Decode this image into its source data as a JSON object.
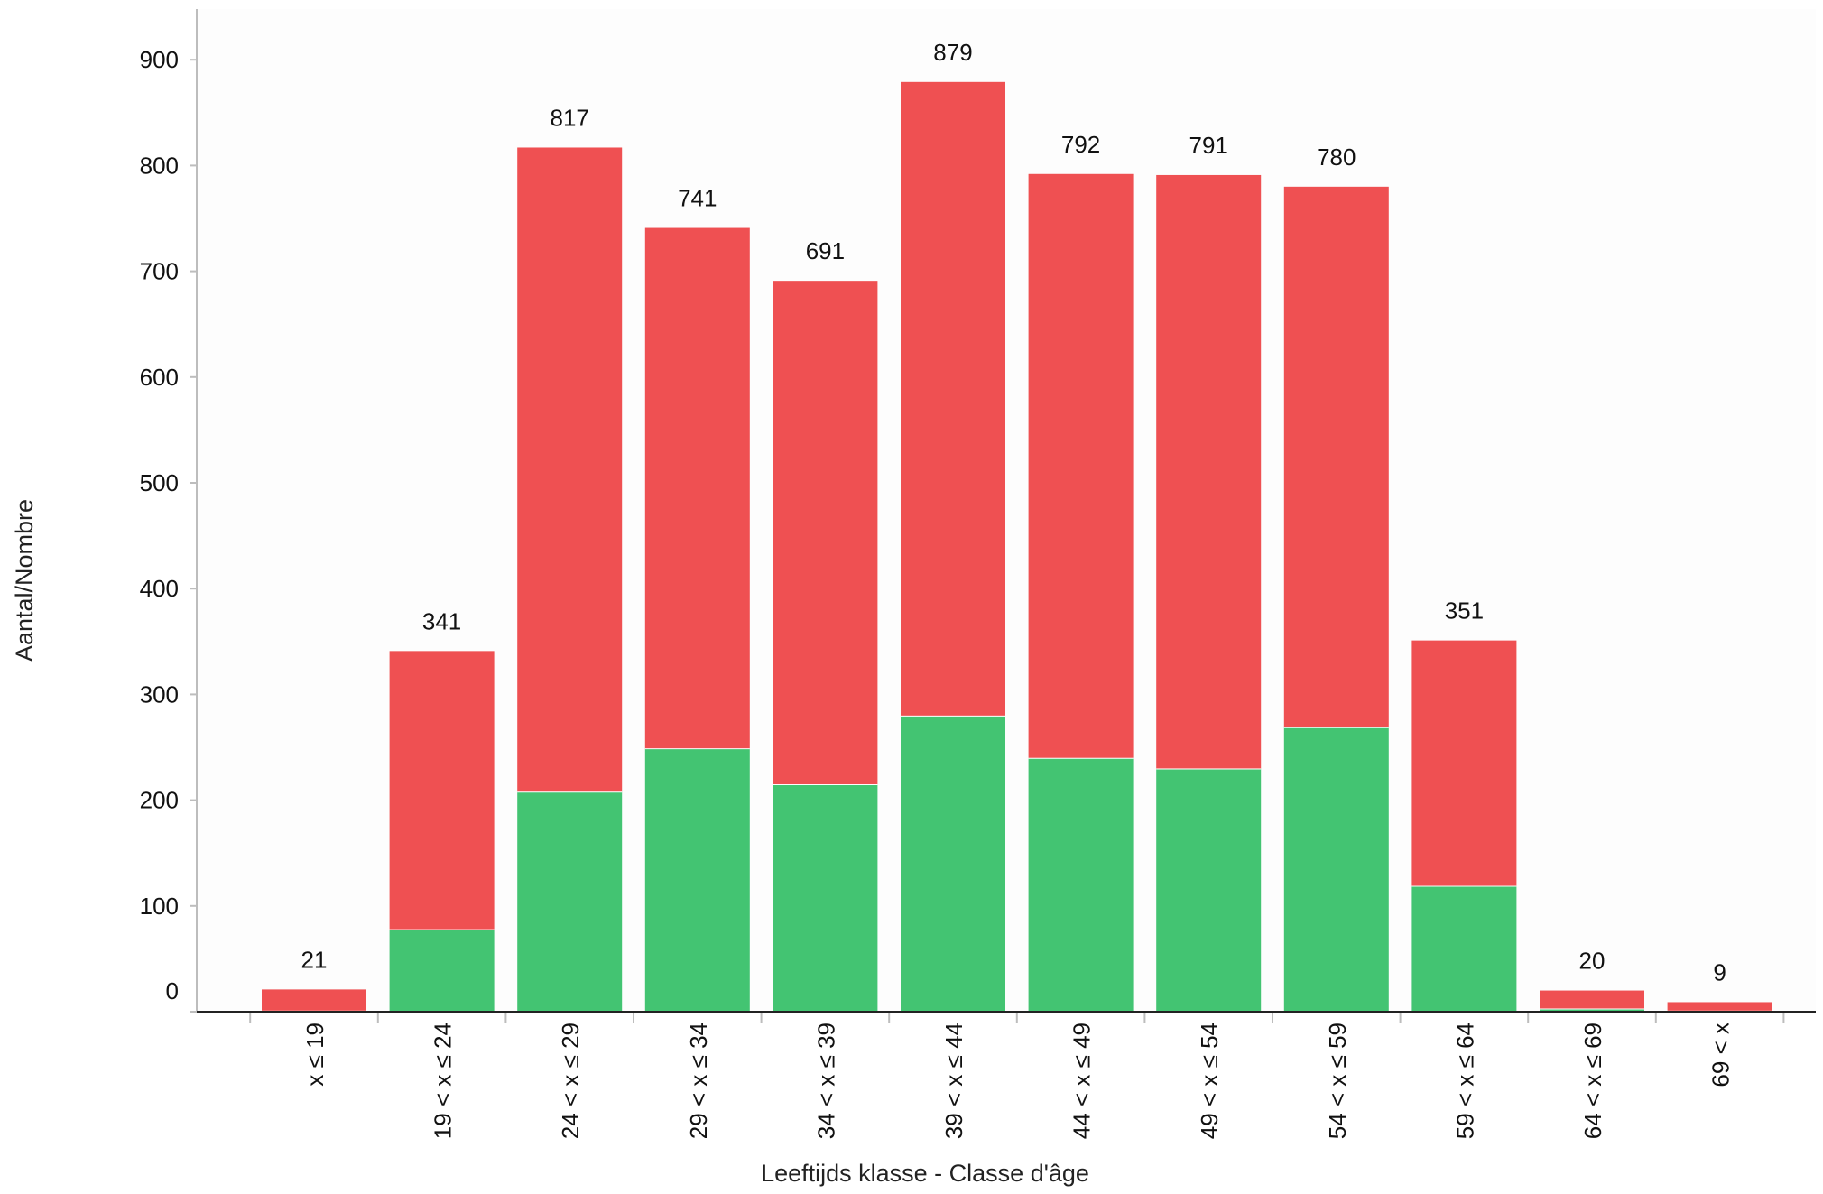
{
  "chart_data": {
    "type": "bar",
    "stacked": true,
    "title": "",
    "xlabel": "Leeftijds klasse - Classe d'âge",
    "ylabel": "Aantal/Nombre",
    "ylim": [
      0,
      940
    ],
    "yticks": [
      0,
      100,
      200,
      300,
      400,
      500,
      600,
      700,
      800,
      900
    ],
    "categories": [
      "x ≤ 19",
      "19 < x ≤  24",
      "24 < x ≤  29",
      "29 < x ≤  34",
      "34 < x ≤  39",
      "39 < x ≤  44",
      "44 < x ≤  49",
      "49 < x ≤  54",
      "54 < x ≤  59",
      "59 < x ≤  64",
      "64 < x ≤  69",
      "69 < x"
    ],
    "totals": [
      21,
      341,
      817,
      741,
      691,
      879,
      792,
      791,
      780,
      351,
      20,
      9
    ],
    "series": [
      {
        "color": "#43c472",
        "values": [
          1,
          78,
          208,
          249,
          215,
          280,
          240,
          230,
          269,
          119,
          3,
          1
        ]
      },
      {
        "color": "#ef5052",
        "values": [
          20,
          263,
          609,
          492,
          476,
          599,
          552,
          561,
          511,
          232,
          17,
          8
        ]
      }
    ],
    "grid": false,
    "legend": "none"
  }
}
